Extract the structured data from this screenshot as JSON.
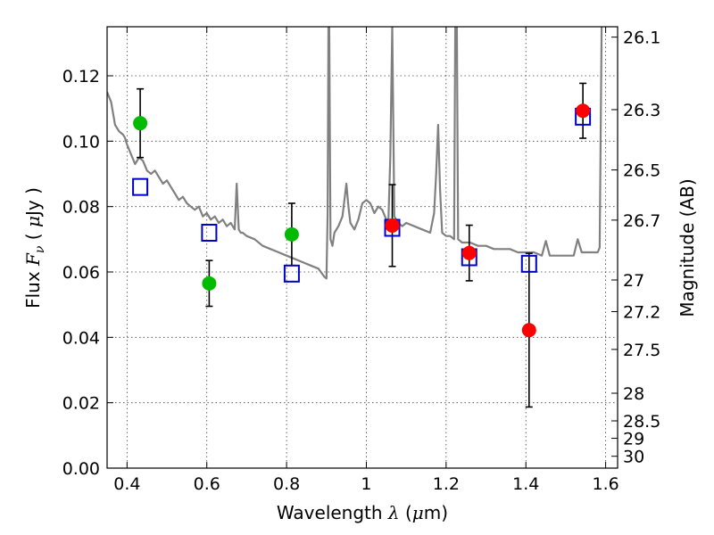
{
  "chart_data": {
    "type": "scatter",
    "xlabel": "Wavelength λ (μm)",
    "ylabel": "Flux F_ν ( μJy )",
    "y2label": "Magnitude (AB)",
    "xlim": [
      0.35,
      1.63
    ],
    "ylim": [
      0.0,
      0.135
    ],
    "grid": true,
    "x_ticks": [
      0.4,
      0.6,
      0.8,
      1.0,
      1.2,
      1.4,
      1.6
    ],
    "x_tick_labels": [
      "0.4",
      "0.6",
      "0.8",
      "1",
      "1.2",
      "1.4",
      "1.6"
    ],
    "y_ticks": [
      0.0,
      0.02,
      0.04,
      0.06,
      0.08,
      0.1,
      0.12
    ],
    "y_tick_labels": [
      "0.00",
      "0.02",
      "0.04",
      "0.06",
      "0.08",
      "0.10",
      "0.12"
    ],
    "mag_ticks": [
      26.1,
      26.3,
      26.5,
      26.7,
      27,
      27.2,
      27.5,
      28,
      28.5,
      29,
      30
    ],
    "mag_tick_labels": [
      "26.1",
      "26.3",
      "26.5",
      "26.7",
      "27",
      "27.2",
      "27.5",
      "28",
      "28.5",
      "29",
      "30"
    ],
    "mag_zero_point": 23.9,
    "colors": {
      "model_line": "#808080",
      "green_points": "#00bb00",
      "red_points": "#ff0000",
      "model_squares": "#0000cc",
      "error_bars": "#000000"
    },
    "series": [
      {
        "kind": "line",
        "x": [
          0.35,
          0.36,
          0.37,
          0.38,
          0.39,
          0.395,
          0.4,
          0.41,
          0.42,
          0.43,
          0.44,
          0.45,
          0.46,
          0.47,
          0.48,
          0.49,
          0.5,
          0.51,
          0.52,
          0.53,
          0.54,
          0.55,
          0.56,
          0.57,
          0.58,
          0.59,
          0.6,
          0.61,
          0.62,
          0.63,
          0.64,
          0.65,
          0.66,
          0.67,
          0.675,
          0.68,
          0.685,
          0.69,
          0.7,
          0.72,
          0.74,
          0.76,
          0.78,
          0.8,
          0.82,
          0.84,
          0.86,
          0.88,
          0.895,
          0.9,
          0.903,
          0.905,
          0.907,
          0.91,
          0.915,
          0.92,
          0.93,
          0.94,
          0.95,
          0.955,
          0.96,
          0.97,
          0.98,
          0.99,
          1.0,
          1.01,
          1.02,
          1.03,
          1.04,
          1.05,
          1.055,
          1.06,
          1.065,
          1.07,
          1.08,
          1.09,
          1.1,
          1.12,
          1.14,
          1.16,
          1.17,
          1.175,
          1.18,
          1.185,
          1.19,
          1.2,
          1.21,
          1.22,
          1.223,
          1.227,
          1.23,
          1.24,
          1.26,
          1.28,
          1.3,
          1.32,
          1.34,
          1.36,
          1.38,
          1.4,
          1.42,
          1.44,
          1.45,
          1.46,
          1.48,
          1.5,
          1.52,
          1.53,
          1.54,
          1.56,
          1.58,
          1.585,
          1.59
        ],
        "y": [
          0.115,
          0.112,
          0.105,
          0.103,
          0.102,
          0.101,
          0.099,
          0.096,
          0.093,
          0.095,
          0.094,
          0.091,
          0.09,
          0.091,
          0.089,
          0.087,
          0.088,
          0.086,
          0.084,
          0.082,
          0.083,
          0.081,
          0.08,
          0.079,
          0.08,
          0.077,
          0.078,
          0.076,
          0.077,
          0.075,
          0.076,
          0.074,
          0.075,
          0.073,
          0.087,
          0.073,
          0.072,
          0.072,
          0.071,
          0.07,
          0.068,
          0.067,
          0.066,
          0.065,
          0.064,
          0.063,
          0.062,
          0.061,
          0.0585,
          0.058,
          0.078,
          0.135,
          0.135,
          0.07,
          0.068,
          0.072,
          0.074,
          0.077,
          0.087,
          0.08,
          0.075,
          0.073,
          0.076,
          0.081,
          0.082,
          0.081,
          0.078,
          0.08,
          0.079,
          0.076,
          0.074,
          0.095,
          0.135,
          0.077,
          0.075,
          0.074,
          0.075,
          0.074,
          0.073,
          0.072,
          0.078,
          0.09,
          0.105,
          0.085,
          0.072,
          0.071,
          0.071,
          0.07,
          0.135,
          0.135,
          0.07,
          0.069,
          0.069,
          0.068,
          0.068,
          0.067,
          0.067,
          0.067,
          0.066,
          0.066,
          0.066,
          0.065,
          0.0695,
          0.065,
          0.065,
          0.065,
          0.065,
          0.07,
          0.066,
          0.066,
          0.066,
          0.0675,
          0.135
        ]
      },
      {
        "kind": "points",
        "role": "green",
        "x": [
          0.433,
          0.606,
          0.813
        ],
        "y": [
          0.1055,
          0.0565,
          0.0715
        ],
        "err": [
          [
            0.0105,
            0.0105
          ],
          [
            0.007,
            0.007
          ],
          [
            0.0095,
            0.0095
          ]
        ]
      },
      {
        "kind": "points",
        "role": "red",
        "x": [
          1.065,
          1.258,
          1.408,
          1.543
        ],
        "y": [
          0.0742,
          0.0658,
          0.0422,
          0.1093
        ],
        "err": [
          [
            0.0125,
            0.0125
          ],
          [
            0.0085,
            0.0085
          ],
          [
            0.0235,
            0.0235
          ],
          [
            0.0084,
            0.0084
          ]
        ]
      },
      {
        "kind": "squares",
        "role": "model",
        "x": [
          0.433,
          0.606,
          0.813,
          1.065,
          1.258,
          1.408,
          1.543
        ],
        "y": [
          0.086,
          0.072,
          0.0595,
          0.0735,
          0.0645,
          0.0625,
          0.1075
        ]
      }
    ]
  }
}
